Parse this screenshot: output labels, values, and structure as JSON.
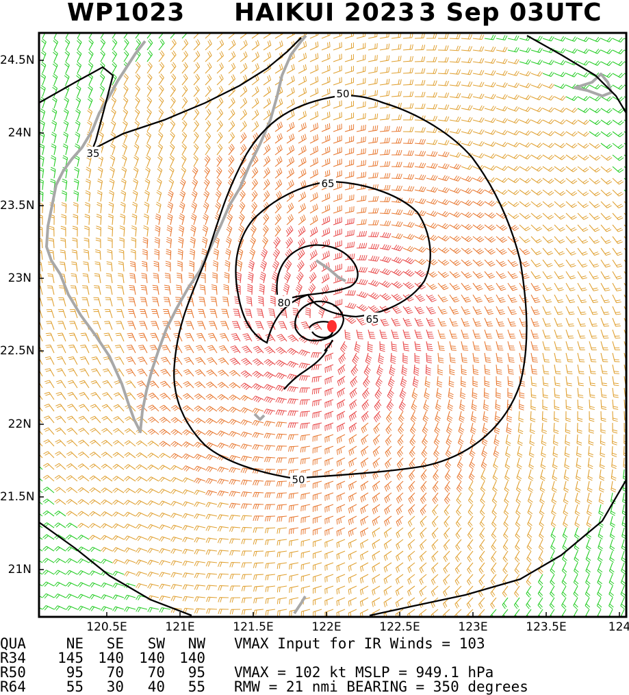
{
  "header": {
    "storm_id": "WP1023",
    "storm_name_year": "HAIKUI 2023",
    "datetime": "3 Sep 03UTC"
  },
  "map": {
    "lat_labels": [
      "24.5N",
      "24N",
      "23.5N",
      "23N",
      "22.5N",
      "22N",
      "21.5N",
      "21N"
    ],
    "lon_labels": [
      "120.5E",
      "121E",
      "121.5E",
      "122E",
      "122.5E",
      "123E",
      "123.5E",
      "124"
    ],
    "contour_labels": [
      "35",
      "50",
      "65",
      "80",
      "65",
      "50"
    ],
    "colors": {
      "below_34kt": "#22cc22",
      "gale": "#e0a030",
      "storm": "#e87830",
      "hurricane": "#e84848",
      "land_outline": "#a8a8a8",
      "contour": "#000000",
      "center": "#ff3030"
    }
  },
  "table": {
    "headers": [
      "QUA",
      "NE",
      "SE",
      "SW",
      "NW"
    ],
    "rows": [
      {
        "label": "R34",
        "values": [
          "145",
          "140",
          "140",
          "140"
        ]
      },
      {
        "label": "R50",
        "values": [
          "95",
          "70",
          "70",
          "95"
        ]
      },
      {
        "label": "R64",
        "values": [
          "55",
          "30",
          "40",
          "55"
        ]
      }
    ]
  },
  "info": {
    "line1": "VMAX Input for IR Winds =  103",
    "line2": "VMAX =  102 kt MSLP =  949.1 hPa",
    "line3": "RMW  =  21 nmi BEARING =  350 degrees"
  }
}
